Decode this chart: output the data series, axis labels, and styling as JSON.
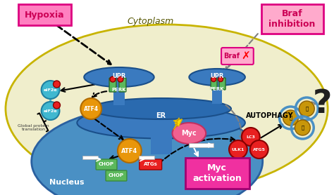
{
  "bg_color": "#ffffff",
  "cell_fill": "#f0eecc",
  "cell_edge": "#c8b400",
  "nucleus_fill": "#4a90c4",
  "nucleus_edge": "#2a60a0",
  "er_fill": "#3a7abf",
  "er_edge": "#1a4f8a",
  "upr_fill": "#3a7abf",
  "green_receptor": "#5cb85c",
  "red_dot": "#e82020",
  "orange_fill": "#e8960a",
  "orange_edge": "#b06a00",
  "green_label_fill": "#5cb85c",
  "green_label_edge": "#3a8a3a",
  "red_label_fill": "#e82020",
  "red_label_edge": "#a00000",
  "pink_myc_fill": "#f06090",
  "pink_myc_edge": "#c03060",
  "myc_act_fill": "#f030a0",
  "myc_act_edge": "#a00070",
  "cyan_eif_fill": "#40b8d0",
  "cyan_eif_edge": "#2080a0",
  "hypoxia_fill": "#ff80c0",
  "hypoxia_edge": "#dd0080",
  "braf_inh_fill": "#ffaacc",
  "braf_inh_edge": "#dd0080",
  "braf_box_fill": "#ffaacc",
  "braf_box_edge": "#dd0080",
  "autophagy_circle_edge": "#4a90c4",
  "gold_fill": "#c8960a",
  "lc3_fill": "#e82020",
  "question_color": "#202020",
  "cytoplasm_text": "Cytoplasm",
  "nucleus_text": "Nucleus",
  "er_text": "ER",
  "upr_text": "UPR",
  "perk_text": "PERK",
  "atf4_text": "ATF4",
  "chop_text": "CHOP",
  "atgs_text": "ATGs",
  "myc_text": "Myc",
  "myc_act_text": "Myc\nactivation",
  "eif2a_text": "eIF2α",
  "global_prot_text": "Global protein\ntranslation",
  "hypoxia_text": "Hypoxia",
  "braf_inh_text": "Braf\ninhibition",
  "braf_text": "Braf",
  "autophagy_text": "AUTOPHAGY",
  "lc3_text": "LC3",
  "ulk1_text": "ULK1",
  "atg5_text": "ATG5",
  "q_text": "?"
}
